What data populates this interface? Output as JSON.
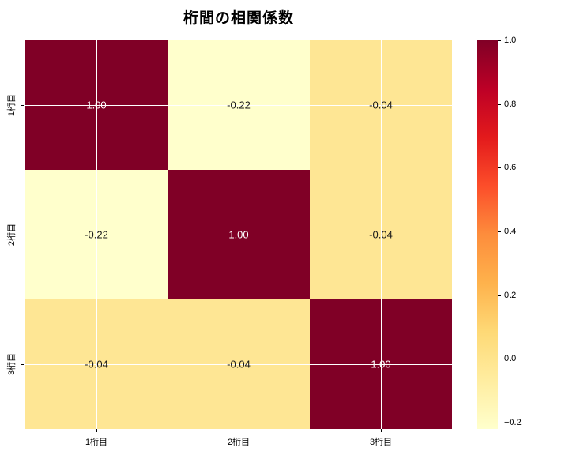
{
  "title": "桁間の相関係数",
  "colors": {
    "background": "#ffffff",
    "grid_line": "#ffffff",
    "tick_mark": "#000000",
    "dark_cell": "#800026",
    "pale_cell": "#ffffcc",
    "light_cell": "#fee694",
    "dark_cell_text": "#ffffff",
    "light_cell_text": "#1a1a1a"
  },
  "chart_data": {
    "type": "heatmap",
    "title": "桁間の相関係数",
    "x_labels": [
      "1桁目",
      "2桁目",
      "3桁目"
    ],
    "y_labels": [
      "1桁目",
      "2桁目",
      "3桁目"
    ],
    "matrix": [
      [
        1.0,
        -0.22,
        -0.04
      ],
      [
        -0.22,
        1.0,
        -0.04
      ],
      [
        -0.04,
        -0.04,
        1.0
      ]
    ],
    "cell_texts": [
      [
        "1.00",
        "-0.22",
        "-0.04"
      ],
      [
        "-0.22",
        "1.00",
        "-0.04"
      ],
      [
        "-0.04",
        "-0.04",
        "1.00"
      ]
    ],
    "cell_colors": [
      [
        "#800026",
        "#ffffcc",
        "#fee694"
      ],
      [
        "#ffffcc",
        "#800026",
        "#fee694"
      ],
      [
        "#fee694",
        "#fee694",
        "#800026"
      ]
    ],
    "cell_text_colors": [
      [
        "#ffffff",
        "#1a1a1a",
        "#1a1a1a"
      ],
      [
        "#1a1a1a",
        "#ffffff",
        "#1a1a1a"
      ],
      [
        "#1a1a1a",
        "#1a1a1a",
        "#ffffff"
      ]
    ],
    "grid": true,
    "colormap": "YlOrRd",
    "vmin": -0.22,
    "vmax": 1.0,
    "colorbar": {
      "position": "right",
      "tick_labels": [
        "1.0",
        "0.8",
        "0.6",
        "0.4",
        "0.2",
        "0.0",
        "−0.2"
      ],
      "tick_values": [
        1.0,
        0.8,
        0.6,
        0.4,
        0.2,
        0.0,
        -0.2
      ],
      "gradient_stops": [
        "#ffffcc",
        "#ffeda0",
        "#fed976",
        "#feb24c",
        "#fd8d3c",
        "#fc4e2a",
        "#e31a1c",
        "#bd0026",
        "#800026"
      ]
    }
  }
}
